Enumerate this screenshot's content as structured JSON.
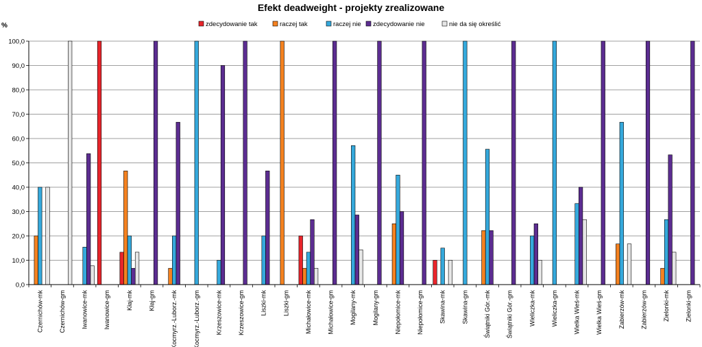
{
  "chart_data": {
    "type": "bar",
    "title": "Efekt deadweight  - projekty zrealizowane",
    "ylabel": "%",
    "xlabel": "",
    "ylim": [
      0,
      100
    ],
    "yticks": [
      "0,0",
      "10,0",
      "20,0",
      "30,0",
      "40,0",
      "50,0",
      "60,0",
      "70,0",
      "80,0",
      "90,0",
      "100,0"
    ],
    "legend_position": "top",
    "categories": [
      "Czernichów-mk",
      "Czernichów-gm",
      "Iwanowice-mk",
      "Iwanowice-gm",
      "Kłaj-mk",
      "Kłaj-gm",
      "Kocmyrz.-Luborz.-mk",
      "Kocmyrz.-Luborz.-gm",
      "Krzeszowice-mk",
      "Krzeszowice-gm",
      "Liszki-mk",
      "Liszki-gm",
      "Michałowice-mk",
      "Michałowice-gm",
      "Mogilany-mk",
      "Mogilany-gm",
      "Niepołomice-mk",
      "Niepołomice-gm",
      "Skawina-mk",
      "Skawina-gm",
      "Świątniki Gór.-mk",
      "Świątniki Gór.-gm",
      "Wieliczka-mk",
      "Wieliczka-gm",
      "Wielka Wieś-mk",
      "Wielka Wieś-gm",
      "Zabierzów-mk",
      "Zabierzów-gm",
      "Zielonki-mk",
      "Zielonki-gm"
    ],
    "series": [
      {
        "name": "zdecydowanie tak",
        "color": "#e8252b",
        "values": [
          0,
          0,
          0,
          100,
          13.3,
          0,
          0,
          0,
          0,
          0,
          0,
          0,
          20,
          0,
          0,
          0,
          0,
          0,
          10,
          0,
          0,
          0,
          0,
          0,
          0,
          0,
          0,
          0,
          0,
          0
        ]
      },
      {
        "name": "raczej tak",
        "color": "#f58220",
        "values": [
          20,
          0,
          0,
          0,
          46.7,
          0,
          6.7,
          0,
          0,
          0,
          0,
          100,
          6.7,
          0,
          0,
          0,
          25,
          0,
          0,
          0,
          22.2,
          0,
          0,
          0,
          0,
          0,
          16.7,
          0,
          6.7,
          0
        ]
      },
      {
        "name": "raczej nie",
        "color": "#35a9dc",
        "values": [
          40,
          0,
          15.4,
          0,
          20,
          0,
          20,
          100,
          10,
          0,
          20,
          0,
          13.3,
          0,
          57.1,
          0,
          45,
          0,
          15,
          100,
          55.6,
          0,
          20,
          100,
          33.3,
          0,
          66.7,
          0,
          26.7,
          0
        ]
      },
      {
        "name": "zdecydowanie nie",
        "color": "#5c2d91",
        "values": [
          0,
          0,
          53.8,
          0,
          6.7,
          100,
          66.7,
          0,
          90,
          100,
          46.7,
          0,
          26.7,
          100,
          28.6,
          100,
          30,
          100,
          0,
          0,
          22.2,
          100,
          25,
          0,
          40,
          100,
          0,
          100,
          53.3,
          100
        ]
      },
      {
        "name": "nie da się określić",
        "color": "#e6e6e6",
        "values": [
          40,
          100,
          7.7,
          0,
          13.3,
          0,
          0,
          0,
          0,
          0,
          0,
          0,
          6.7,
          0,
          14.3,
          0,
          0,
          0,
          10,
          0,
          0,
          0,
          10,
          0,
          26.7,
          0,
          16.7,
          0,
          13.3,
          0
        ]
      }
    ]
  }
}
